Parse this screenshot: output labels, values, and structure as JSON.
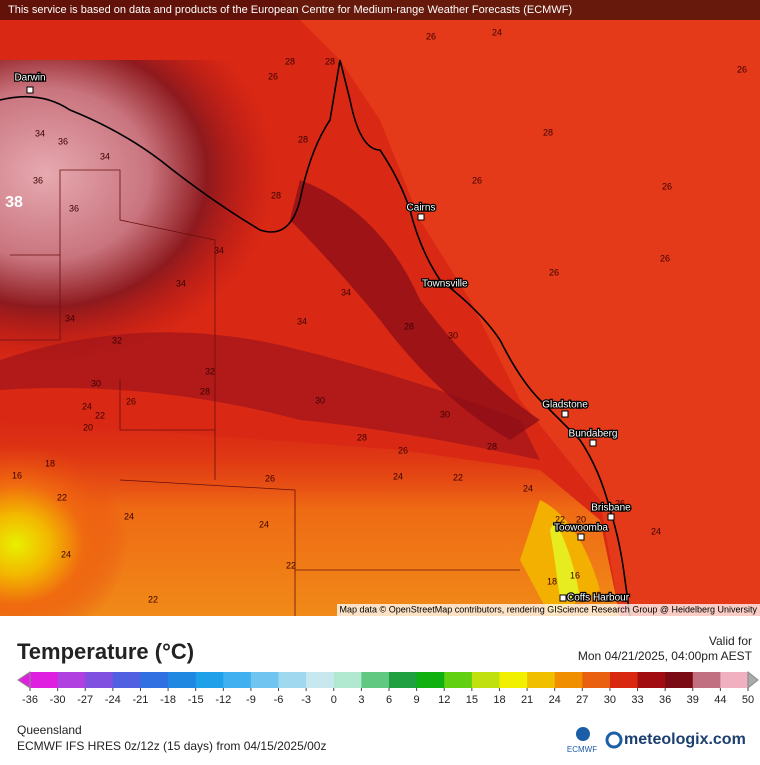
{
  "banner": "This service is based on data and products of the European Centre for Medium-range Weather Forecasts (ECMWF)",
  "cities": [
    "Darwin",
    "Cairns",
    "Townsville",
    "Gladstone",
    "Bundaberg",
    "Brisbane",
    "Toowoomba",
    "Coffs Harbour"
  ],
  "contour_labels": [
    26,
    24,
    26,
    28,
    28,
    26,
    28,
    34,
    36,
    34,
    36,
    36,
    38,
    28,
    28,
    26,
    26,
    34,
    34,
    34,
    32,
    34,
    34,
    28,
    30,
    26,
    26,
    32,
    28,
    30,
    26,
    24,
    22,
    20,
    18,
    16,
    22,
    24,
    24,
    22,
    24,
    22,
    26,
    28,
    26,
    24,
    22,
    24,
    26,
    24,
    20,
    22,
    18,
    16,
    30,
    28,
    30
  ],
  "attribution": "Map data © OpenStreetMap contributors, rendering GIScience Research Group @ Heidelberg University",
  "legend": {
    "title": "Temperature (°C)",
    "valid_label": "Valid for",
    "valid_time": "Mon 04/21/2025, 04:00pm AEST",
    "ticks": [
      -36,
      -30,
      -27,
      -24,
      -21,
      -18,
      -15,
      -12,
      -9,
      -6,
      -3,
      0,
      3,
      6,
      9,
      12,
      15,
      18,
      21,
      24,
      27,
      30,
      33,
      36,
      39,
      44,
      50
    ]
  },
  "footer": {
    "region": "Queensland",
    "model": "ECMWF IFS HRES 0z/12z (15 days) from 04/15/2025/00z",
    "ecmwf_logo": "ECMWF",
    "brand": "meteologix.com"
  }
}
